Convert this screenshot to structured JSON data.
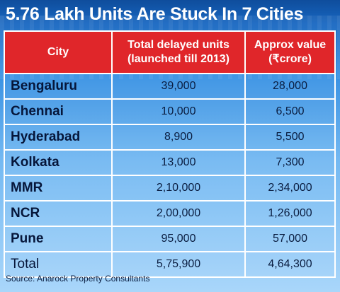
{
  "title": "5.76 Lakh Units Are Stuck In 7 Cities",
  "colors": {
    "header_bg": "#e0262a",
    "title_text": "#ffffff",
    "body_text": "#0a1d40"
  },
  "source": "Source: Anarock Property Consultants",
  "chart_data": {
    "type": "table",
    "title": "5.76 Lakh Units Are Stuck In 7 Cities",
    "columns": [
      {
        "label": "City"
      },
      {
        "label_line1": "Total delayed units",
        "label_line2": "(launched  till 2013)"
      },
      {
        "label_line1": "Approx value",
        "label_line2": "(₹crore)"
      }
    ],
    "rows": [
      {
        "city": "Bengaluru",
        "units": "39,000",
        "value": "28,000"
      },
      {
        "city": "Chennai",
        "units": "10,000",
        "value": "6,500"
      },
      {
        "city": "Hyderabad",
        "units": "8,900",
        "value": "5,500"
      },
      {
        "city": "Kolkata",
        "units": "13,000",
        "value": "7,300"
      },
      {
        "city": "MMR",
        "units": "2,10,000",
        "value": "2,34,000"
      },
      {
        "city": "NCR",
        "units": "2,00,000",
        "value": "1,26,000"
      },
      {
        "city": "Pune",
        "units": "95,000",
        "value": "57,000"
      },
      {
        "city": "Total",
        "units": "5,75,900",
        "value": "4,64,300"
      }
    ]
  }
}
